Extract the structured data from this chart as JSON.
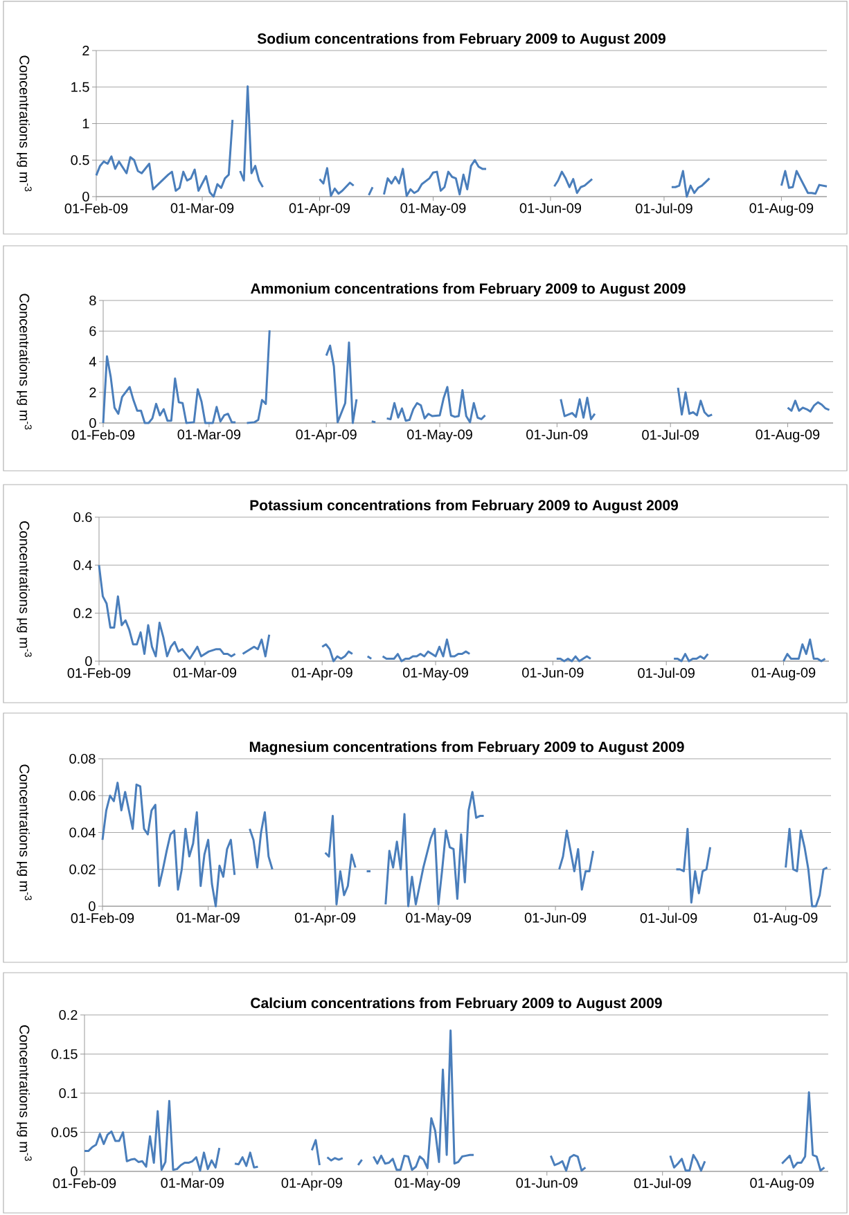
{
  "chart_data": [
    {
      "type": "line",
      "title": "Sodium concentrations from February 2009 to August 2009",
      "ylabel": "Concentrations  µg m$^{-3}$",
      "color": "#4a7ebb",
      "grid": "y",
      "xlim": [
        "2009-02-01",
        "2009-08-13"
      ],
      "ylim": [
        0,
        2
      ],
      "yticks": [
        0,
        0.5,
        1,
        1.5,
        2
      ],
      "xticks": [
        {
          "value": "2009-02-01",
          "label": "01-Feb-09"
        },
        {
          "value": "2009-03-01",
          "label": "01-Mar-09"
        },
        {
          "value": "2009-04-01",
          "label": "01-Apr-09"
        },
        {
          "value": "2009-05-01",
          "label": "01-May-09"
        },
        {
          "value": "2009-06-01",
          "label": "01-Jun-09"
        },
        {
          "value": "2009-07-01",
          "label": "01-Jul-09"
        },
        {
          "value": "2009-08-01",
          "label": "01-Aug-09"
        }
      ],
      "x": [
        "2009-02-01",
        "2009-02-02",
        "2009-02-03",
        "2009-02-04",
        "2009-02-05",
        "2009-02-06",
        "2009-02-07",
        "2009-02-09",
        "2009-02-10",
        "2009-02-11",
        "2009-02-12",
        "2009-02-13",
        "2009-02-15",
        "2009-02-16",
        "2009-02-18",
        "2009-02-20",
        "2009-02-21",
        "2009-02-22",
        "2009-02-23",
        "2009-02-24",
        "2009-02-25",
        "2009-02-26",
        "2009-02-27",
        "2009-02-28",
        "2009-03-02",
        "2009-03-03",
        "2009-03-04",
        "2009-03-05",
        "2009-03-06",
        "2009-03-07",
        "2009-03-08",
        "2009-03-09",
        "2009-03-10",
        "2009-03-11",
        "2009-03-12",
        "2009-03-13",
        "2009-03-14",
        "2009-03-15",
        "2009-03-16",
        "2009-03-17",
        "2009-03-23",
        "2009-04-01",
        "2009-04-02",
        "2009-04-03",
        "2009-04-04",
        "2009-04-05",
        "2009-04-06",
        "2009-04-07",
        "2009-04-09",
        "2009-04-10",
        "2009-04-12",
        "2009-04-14",
        "2009-04-15",
        "2009-04-16",
        "2009-04-18",
        "2009-04-19",
        "2009-04-20",
        "2009-04-21",
        "2009-04-22",
        "2009-04-23",
        "2009-04-24",
        "2009-04-25",
        "2009-04-26",
        "2009-04-27",
        "2009-04-28",
        "2009-04-30",
        "2009-05-01",
        "2009-05-02",
        "2009-05-03",
        "2009-05-04",
        "2009-05-05",
        "2009-05-06",
        "2009-05-07",
        "2009-05-08",
        "2009-05-09",
        "2009-05-10",
        "2009-05-11",
        "2009-05-12",
        "2009-05-13",
        "2009-05-14",
        "2009-05-15",
        "2009-05-22",
        "2009-06-02",
        "2009-06-03",
        "2009-06-04",
        "2009-06-05",
        "2009-06-06",
        "2009-06-07",
        "2009-06-08",
        "2009-06-09",
        "2009-06-10",
        "2009-06-12",
        "2009-06-21",
        "2009-07-03",
        "2009-07-04",
        "2009-07-05",
        "2009-07-06",
        "2009-07-07",
        "2009-07-08",
        "2009-07-09",
        "2009-07-10",
        "2009-07-11",
        "2009-07-13",
        "2009-07-21",
        "2009-08-01",
        "2009-08-02",
        "2009-08-03",
        "2009-08-04",
        "2009-08-05",
        "2009-08-06",
        "2009-08-07",
        "2009-08-08",
        "2009-08-09",
        "2009-08-10",
        "2009-08-11",
        "2009-08-13"
      ],
      "values": [
        0.29,
        0.42,
        0.48,
        0.45,
        0.55,
        0.38,
        0.48,
        0.32,
        0.54,
        0.5,
        0.35,
        0.32,
        0.45,
        0.1,
        0.2,
        0.3,
        0.34,
        0.08,
        0.12,
        0.34,
        0.22,
        0.25,
        0.37,
        0.08,
        0.28,
        0.06,
        0.0,
        0.17,
        0.12,
        0.25,
        0.3,
        1.05,
        null,
        0.35,
        0.22,
        1.51,
        0.32,
        0.42,
        0.22,
        0.13,
        null,
        0.24,
        0.18,
        0.39,
        0.01,
        0.11,
        0.04,
        0.08,
        0.19,
        0.15,
        null,
        0.02,
        0.13,
        null,
        0.03,
        0.25,
        0.18,
        0.27,
        0.18,
        0.38,
        0.01,
        0.1,
        0.05,
        0.08,
        0.17,
        0.25,
        0.33,
        0.34,
        0.08,
        0.13,
        0.34,
        0.27,
        0.25,
        0.03,
        0.3,
        0.1,
        0.42,
        0.5,
        0.41,
        0.38,
        0.38,
        null,
        0.14,
        0.22,
        0.34,
        0.25,
        0.13,
        0.24,
        0.05,
        0.13,
        0.15,
        0.24,
        null,
        0.13,
        0.13,
        0.15,
        0.35,
        0.0,
        0.15,
        0.05,
        0.12,
        0.15,
        0.25,
        null,
        0.15,
        0.35,
        0.12,
        0.13,
        0.35,
        0.25,
        0.15,
        0.05,
        0.05,
        0.04,
        0.16,
        0.14
      ]
    },
    {
      "type": "line",
      "title": "Ammonium concentrations from February 2009 to August 2009",
      "ylabel": "Concentrations  µg m$^{-3}$",
      "color": "#4a7ebb",
      "grid": "y",
      "xlim": [
        "2009-02-01",
        "2009-08-13"
      ],
      "ylim": [
        0,
        8
      ],
      "yticks": [
        0,
        2,
        4,
        6,
        8
      ],
      "xticks": [
        {
          "value": "2009-02-01",
          "label": "01-Feb-09"
        },
        {
          "value": "2009-03-01",
          "label": "01-Mar-09"
        },
        {
          "value": "2009-04-01",
          "label": "01-Apr-09"
        },
        {
          "value": "2009-05-01",
          "label": "01-May-09"
        },
        {
          "value": "2009-06-01",
          "label": "01-Jun-09"
        },
        {
          "value": "2009-07-01",
          "label": "01-Jul-09"
        },
        {
          "value": "2009-08-01",
          "label": "01-Aug-09"
        }
      ],
      "x": [
        "2009-02-01",
        "2009-02-02",
        "2009-02-03",
        "2009-02-04",
        "2009-02-05",
        "2009-02-06",
        "2009-02-08",
        "2009-02-09",
        "2009-02-10",
        "2009-02-11",
        "2009-02-12",
        "2009-02-13",
        "2009-02-14",
        "2009-02-15",
        "2009-02-16",
        "2009-02-17",
        "2009-02-18",
        "2009-02-19",
        "2009-02-20",
        "2009-02-21",
        "2009-02-22",
        "2009-02-23",
        "2009-02-25",
        "2009-02-26",
        "2009-02-27",
        "2009-02-28",
        "2009-03-02",
        "2009-03-03",
        "2009-03-04",
        "2009-03-05",
        "2009-03-06",
        "2009-03-07",
        "2009-03-08",
        "2009-03-09",
        "2009-03-11",
        "2009-03-13",
        "2009-03-14",
        "2009-03-15",
        "2009-03-16",
        "2009-03-17",
        "2009-03-25",
        "2009-04-01",
        "2009-04-02",
        "2009-04-03",
        "2009-04-04",
        "2009-04-06",
        "2009-04-07",
        "2009-04-08",
        "2009-04-09",
        "2009-04-11",
        "2009-04-13",
        "2009-04-14",
        "2009-04-15",
        "2009-04-17",
        "2009-04-18",
        "2009-04-19",
        "2009-04-20",
        "2009-04-21",
        "2009-04-22",
        "2009-04-23",
        "2009-04-24",
        "2009-04-25",
        "2009-04-26",
        "2009-04-27",
        "2009-04-28",
        "2009-04-29",
        "2009-05-01",
        "2009-05-02",
        "2009-05-03",
        "2009-05-04",
        "2009-05-05",
        "2009-05-06",
        "2009-05-07",
        "2009-05-08",
        "2009-05-09",
        "2009-05-10",
        "2009-05-11",
        "2009-05-12",
        "2009-05-13",
        "2009-05-20",
        "2009-06-02",
        "2009-06-03",
        "2009-06-04",
        "2009-06-05",
        "2009-06-06",
        "2009-06-07",
        "2009-06-08",
        "2009-06-09",
        "2009-06-10",
        "2009-06-11",
        "2009-06-20",
        "2009-07-03",
        "2009-07-04",
        "2009-07-05",
        "2009-07-06",
        "2009-07-07",
        "2009-07-08",
        "2009-07-09",
        "2009-07-10",
        "2009-07-11",
        "2009-07-12",
        "2009-07-20",
        "2009-08-01",
        "2009-08-02",
        "2009-08-03",
        "2009-08-04",
        "2009-08-05",
        "2009-08-06",
        "2009-08-07",
        "2009-08-08",
        "2009-08-09",
        "2009-08-10",
        "2009-08-11",
        "2009-08-12"
      ],
      "values": [
        0.0,
        4.35,
        3.0,
        1.0,
        0.6,
        1.7,
        2.35,
        1.5,
        0.8,
        0.8,
        0.0,
        0.0,
        0.3,
        1.25,
        0.5,
        0.9,
        0.15,
        0.15,
        2.9,
        1.35,
        1.3,
        0.0,
        0.05,
        2.2,
        1.4,
        0.0,
        0.0,
        1.05,
        0.1,
        0.5,
        0.6,
        0.05,
        0.05,
        null,
        0.0,
        0.05,
        0.2,
        1.5,
        1.25,
        6.05,
        null,
        4.4,
        5.05,
        3.7,
        0.05,
        1.3,
        5.25,
        0.0,
        1.55,
        null,
        0.1,
        0.05,
        null,
        0.3,
        0.25,
        1.3,
        0.35,
        0.95,
        0.15,
        0.2,
        0.9,
        1.3,
        1.15,
        0.3,
        0.6,
        0.45,
        0.5,
        1.6,
        2.35,
        0.5,
        0.4,
        0.45,
        2.15,
        0.45,
        0.05,
        1.3,
        0.35,
        0.25,
        0.5,
        null,
        1.55,
        0.45,
        0.55,
        0.65,
        0.4,
        1.55,
        0.35,
        1.65,
        0.25,
        0.6,
        null,
        2.3,
        0.55,
        2.0,
        0.6,
        0.7,
        0.5,
        1.45,
        0.7,
        0.45,
        0.55,
        null,
        1.0,
        0.8,
        1.45,
        0.8,
        1.0,
        0.9,
        0.75,
        1.15,
        1.35,
        1.2,
        0.95,
        0.85
      ]
    },
    {
      "type": "line",
      "title": "Potassium concentrations from February 2009 to August 2009",
      "ylabel": "Concentrations  µg m$^{-3}$",
      "color": "#4a7ebb",
      "grid": "y",
      "xlim": [
        "2009-02-01",
        "2009-08-13"
      ],
      "ylim": [
        0,
        0.6
      ],
      "yticks": [
        0,
        0.2,
        0.4,
        0.6
      ],
      "xticks": [
        {
          "value": "2009-02-01",
          "label": "01-Feb-09"
        },
        {
          "value": "2009-03-01",
          "label": "01-Mar-09"
        },
        {
          "value": "2009-04-01",
          "label": "01-Apr-09"
        },
        {
          "value": "2009-05-01",
          "label": "01-May-09"
        },
        {
          "value": "2009-06-01",
          "label": "01-Jun-09"
        },
        {
          "value": "2009-07-01",
          "label": "01-Jul-09"
        },
        {
          "value": "2009-08-01",
          "label": "01-Aug-09"
        }
      ],
      "x": [
        "2009-02-01",
        "2009-02-02",
        "2009-02-03",
        "2009-02-04",
        "2009-02-05",
        "2009-02-06",
        "2009-02-07",
        "2009-02-08",
        "2009-02-09",
        "2009-02-10",
        "2009-02-11",
        "2009-02-12",
        "2009-02-13",
        "2009-02-14",
        "2009-02-15",
        "2009-02-16",
        "2009-02-17",
        "2009-02-18",
        "2009-02-19",
        "2009-02-20",
        "2009-02-21",
        "2009-02-22",
        "2009-02-23",
        "2009-02-24",
        "2009-02-25",
        "2009-02-27",
        "2009-02-28",
        "2009-03-02",
        "2009-03-04",
        "2009-03-05",
        "2009-03-06",
        "2009-03-07",
        "2009-03-08",
        "2009-03-09",
        "2009-03-10",
        "2009-03-11",
        "2009-03-14",
        "2009-03-15",
        "2009-03-16",
        "2009-03-17",
        "2009-03-18",
        "2009-03-25",
        "2009-04-01",
        "2009-04-02",
        "2009-04-03",
        "2009-04-04",
        "2009-04-05",
        "2009-04-06",
        "2009-04-07",
        "2009-04-08",
        "2009-04-09",
        "2009-04-11",
        "2009-04-13",
        "2009-04-14",
        "2009-04-15",
        "2009-04-17",
        "2009-04-18",
        "2009-04-19",
        "2009-04-20",
        "2009-04-21",
        "2009-04-22",
        "2009-04-23",
        "2009-04-24",
        "2009-04-25",
        "2009-04-26",
        "2009-04-27",
        "2009-04-28",
        "2009-04-29",
        "2009-04-30",
        "2009-05-01",
        "2009-05-02",
        "2009-05-03",
        "2009-05-04",
        "2009-05-05",
        "2009-05-06",
        "2009-05-07",
        "2009-05-08",
        "2009-05-09",
        "2009-05-10",
        "2009-05-20",
        "2009-06-02",
        "2009-06-03",
        "2009-06-04",
        "2009-06-05",
        "2009-06-06",
        "2009-06-07",
        "2009-06-08",
        "2009-06-09",
        "2009-06-10",
        "2009-06-11",
        "2009-06-20",
        "2009-07-03",
        "2009-07-04",
        "2009-07-05",
        "2009-07-06",
        "2009-07-07",
        "2009-07-08",
        "2009-07-09",
        "2009-07-10",
        "2009-07-11",
        "2009-07-12",
        "2009-07-20",
        "2009-08-01",
        "2009-08-02",
        "2009-08-03",
        "2009-08-04",
        "2009-08-05",
        "2009-08-06",
        "2009-08-07",
        "2009-08-08",
        "2009-08-09",
        "2009-08-10",
        "2009-08-11",
        "2009-08-12"
      ],
      "values": [
        0.4,
        0.27,
        0.24,
        0.14,
        0.14,
        0.27,
        0.15,
        0.17,
        0.13,
        0.07,
        0.07,
        0.12,
        0.03,
        0.15,
        0.06,
        0.02,
        0.16,
        0.1,
        0.02,
        0.06,
        0.08,
        0.04,
        0.05,
        0.03,
        0.01,
        0.06,
        0.02,
        0.04,
        0.05,
        0.05,
        0.03,
        0.03,
        0.02,
        0.03,
        null,
        0.03,
        0.06,
        0.05,
        0.09,
        0.02,
        0.11,
        null,
        0.06,
        0.07,
        0.05,
        0.0,
        0.02,
        0.01,
        0.02,
        0.04,
        0.03,
        null,
        0.02,
        0.01,
        null,
        0.02,
        0.01,
        0.01,
        0.01,
        0.03,
        0.0,
        0.01,
        0.01,
        0.02,
        0.02,
        0.03,
        0.02,
        0.04,
        0.03,
        0.02,
        0.06,
        0.02,
        0.09,
        0.02,
        0.02,
        0.03,
        0.03,
        0.04,
        0.03,
        null,
        0.01,
        0.01,
        0.0,
        0.01,
        0.0,
        0.02,
        0.0,
        0.01,
        0.02,
        0.01,
        null,
        0.01,
        0.01,
        0.0,
        0.03,
        0.0,
        0.01,
        0.01,
        0.02,
        0.01,
        0.03,
        null,
        0.0,
        0.03,
        0.01,
        0.01,
        0.01,
        0.07,
        0.03,
        0.09,
        0.01,
        0.01,
        0.0,
        0.01
      ]
    },
    {
      "type": "line",
      "title": "Magnesium concentrations from February 2009 to August 2009",
      "ylabel": "Concentrations  µg m$^{-3}$",
      "color": "#4a7ebb",
      "grid": "y",
      "xlim": [
        "2009-02-01",
        "2009-08-13"
      ],
      "ylim": [
        0,
        0.08
      ],
      "yticks": [
        0,
        0.02,
        0.04,
        0.06,
        0.08
      ],
      "xticks": [
        {
          "value": "2009-02-01",
          "label": "01-Feb-09"
        },
        {
          "value": "2009-03-01",
          "label": "01-Mar-09"
        },
        {
          "value": "2009-04-01",
          "label": "01-Apr-09"
        },
        {
          "value": "2009-05-01",
          "label": "01-May-09"
        },
        {
          "value": "2009-06-01",
          "label": "01-Jun-09"
        },
        {
          "value": "2009-07-01",
          "label": "01-Jul-09"
        },
        {
          "value": "2009-08-01",
          "label": "01-Aug-09"
        }
      ],
      "x": [
        "2009-02-01",
        "2009-02-02",
        "2009-02-03",
        "2009-02-04",
        "2009-02-05",
        "2009-02-06",
        "2009-02-07",
        "2009-02-08",
        "2009-02-09",
        "2009-02-10",
        "2009-02-11",
        "2009-02-12",
        "2009-02-13",
        "2009-02-14",
        "2009-02-15",
        "2009-02-16",
        "2009-02-17",
        "2009-02-18",
        "2009-02-19",
        "2009-02-20",
        "2009-02-21",
        "2009-02-22",
        "2009-02-23",
        "2009-02-24",
        "2009-02-25",
        "2009-02-26",
        "2009-02-27",
        "2009-02-28",
        "2009-03-01",
        "2009-03-02",
        "2009-03-03",
        "2009-03-04",
        "2009-03-05",
        "2009-03-06",
        "2009-03-07",
        "2009-03-08",
        "2009-03-10",
        "2009-03-12",
        "2009-03-13",
        "2009-03-14",
        "2009-03-15",
        "2009-03-16",
        "2009-03-17",
        "2009-03-18",
        "2009-03-25",
        "2009-04-01",
        "2009-04-02",
        "2009-04-03",
        "2009-04-04",
        "2009-04-05",
        "2009-04-06",
        "2009-04-07",
        "2009-04-08",
        "2009-04-09",
        "2009-04-10",
        "2009-04-12",
        "2009-04-13",
        "2009-04-14",
        "2009-04-17",
        "2009-04-18",
        "2009-04-19",
        "2009-04-20",
        "2009-04-21",
        "2009-04-22",
        "2009-04-23",
        "2009-04-24",
        "2009-04-25",
        "2009-04-26",
        "2009-04-27",
        "2009-04-28",
        "2009-04-29",
        "2009-04-30",
        "2009-05-01",
        "2009-05-02",
        "2009-05-03",
        "2009-05-04",
        "2009-05-05",
        "2009-05-06",
        "2009-05-07",
        "2009-05-08",
        "2009-05-09",
        "2009-05-10",
        "2009-05-11",
        "2009-05-12",
        "2009-05-13",
        "2009-05-20",
        "2009-06-02",
        "2009-06-03",
        "2009-06-04",
        "2009-06-05",
        "2009-06-06",
        "2009-06-07",
        "2009-06-08",
        "2009-06-09",
        "2009-06-10",
        "2009-06-11",
        "2009-06-20",
        "2009-07-03",
        "2009-07-04",
        "2009-07-05",
        "2009-07-06",
        "2009-07-07",
        "2009-07-08",
        "2009-07-09",
        "2009-07-10",
        "2009-07-11",
        "2009-07-12",
        "2009-07-20",
        "2009-08-01",
        "2009-08-02",
        "2009-08-03",
        "2009-08-04",
        "2009-08-05",
        "2009-08-06",
        "2009-08-07",
        "2009-08-08",
        "2009-08-09",
        "2009-08-10",
        "2009-08-11",
        "2009-08-12"
      ],
      "values": [
        0.036,
        0.052,
        0.06,
        0.057,
        0.067,
        0.052,
        0.062,
        0.052,
        0.042,
        0.066,
        0.065,
        0.042,
        0.039,
        0.052,
        0.055,
        0.011,
        0.02,
        0.03,
        0.039,
        0.041,
        0.009,
        0.02,
        0.042,
        0.027,
        0.034,
        0.051,
        0.011,
        0.028,
        0.036,
        0.012,
        0.0,
        0.022,
        0.016,
        0.031,
        0.036,
        0.017,
        null,
        0.042,
        0.036,
        0.021,
        0.04,
        0.051,
        0.027,
        0.02,
        null,
        0.029,
        0.027,
        0.049,
        0.001,
        0.019,
        0.006,
        0.011,
        0.028,
        0.021,
        null,
        0.019,
        0.019,
        null,
        0.001,
        0.03,
        0.021,
        0.035,
        0.02,
        0.05,
        0.0,
        0.016,
        0.001,
        0.011,
        0.021,
        0.029,
        0.037,
        0.042,
        0.001,
        0.02,
        0.041,
        0.032,
        0.031,
        0.004,
        0.039,
        0.013,
        0.052,
        0.062,
        0.048,
        0.049,
        0.049,
        null,
        0.02,
        0.027,
        0.041,
        0.03,
        0.019,
        0.031,
        0.009,
        0.019,
        0.019,
        0.03,
        null,
        0.02,
        0.02,
        0.019,
        0.042,
        0.002,
        0.019,
        0.007,
        0.019,
        0.02,
        0.032,
        null,
        0.021,
        0.042,
        0.02,
        0.019,
        0.041,
        0.032,
        0.02,
        0.0,
        0.0,
        0.006,
        0.02,
        0.021
      ]
    },
    {
      "type": "line",
      "title": "Calcium concentrations from February 2009 to August 2009",
      "ylabel": "Concentrations  µg m$^{-3}$",
      "color": "#4a7ebb",
      "grid": "y",
      "xlim": [
        "2009-02-01",
        "2009-08-13"
      ],
      "ylim": [
        0,
        0.2
      ],
      "yticks": [
        0,
        0.05,
        0.1,
        0.15,
        0.2
      ],
      "xticks": [
        {
          "value": "2009-02-01",
          "label": "01-Feb-09"
        },
        {
          "value": "2009-03-01",
          "label": "01-Mar-09"
        },
        {
          "value": "2009-04-01",
          "label": "01-Apr-09"
        },
        {
          "value": "2009-05-01",
          "label": "01-May-09"
        },
        {
          "value": "2009-06-01",
          "label": "01-Jun-09"
        },
        {
          "value": "2009-07-01",
          "label": "01-Jul-09"
        },
        {
          "value": "2009-08-01",
          "label": "01-Aug-09"
        }
      ],
      "x": [
        "2009-02-01",
        "2009-02-02",
        "2009-02-03",
        "2009-02-04",
        "2009-02-05",
        "2009-02-06",
        "2009-02-07",
        "2009-02-08",
        "2009-02-09",
        "2009-02-10",
        "2009-02-11",
        "2009-02-12",
        "2009-02-13",
        "2009-02-14",
        "2009-02-15",
        "2009-02-16",
        "2009-02-17",
        "2009-02-18",
        "2009-02-19",
        "2009-02-20",
        "2009-02-21",
        "2009-02-22",
        "2009-02-23",
        "2009-02-24",
        "2009-02-25",
        "2009-02-26",
        "2009-02-27",
        "2009-02-28",
        "2009-03-01",
        "2009-03-02",
        "2009-03-03",
        "2009-03-04",
        "2009-03-05",
        "2009-03-06",
        "2009-03-07",
        "2009-03-08",
        "2009-03-10",
        "2009-03-12",
        "2009-03-13",
        "2009-03-14",
        "2009-03-15",
        "2009-03-16",
        "2009-03-17",
        "2009-03-18",
        "2009-03-25",
        "2009-04-01",
        "2009-04-02",
        "2009-04-03",
        "2009-04-04",
        "2009-04-05",
        "2009-04-06",
        "2009-04-07",
        "2009-04-08",
        "2009-04-09",
        "2009-04-11",
        "2009-04-13",
        "2009-04-14",
        "2009-04-15",
        "2009-04-17",
        "2009-04-18",
        "2009-04-19",
        "2009-04-20",
        "2009-04-21",
        "2009-04-22",
        "2009-04-23",
        "2009-04-24",
        "2009-04-25",
        "2009-04-26",
        "2009-04-27",
        "2009-04-28",
        "2009-04-29",
        "2009-04-30",
        "2009-05-01",
        "2009-05-02",
        "2009-05-03",
        "2009-05-04",
        "2009-05-05",
        "2009-05-06",
        "2009-05-07",
        "2009-05-08",
        "2009-05-09",
        "2009-05-10",
        "2009-05-11",
        "2009-05-12",
        "2009-05-13",
        "2009-05-20",
        "2009-06-02",
        "2009-06-03",
        "2009-06-04",
        "2009-06-05",
        "2009-06-06",
        "2009-06-07",
        "2009-06-08",
        "2009-06-09",
        "2009-06-10",
        "2009-06-11",
        "2009-06-20",
        "2009-07-03",
        "2009-07-04",
        "2009-07-05",
        "2009-07-06",
        "2009-07-07",
        "2009-07-08",
        "2009-07-09",
        "2009-07-10",
        "2009-07-11",
        "2009-07-12",
        "2009-07-20",
        "2009-08-01",
        "2009-08-02",
        "2009-08-03",
        "2009-08-04",
        "2009-08-05",
        "2009-08-06",
        "2009-08-07",
        "2009-08-08",
        "2009-08-09",
        "2009-08-10",
        "2009-08-11",
        "2009-08-12"
      ],
      "values": [
        0.026,
        0.026,
        0.031,
        0.034,
        0.048,
        0.035,
        0.047,
        0.051,
        0.039,
        0.039,
        0.05,
        0.013,
        0.015,
        0.016,
        0.012,
        0.013,
        0.006,
        0.045,
        0.011,
        0.077,
        0.002,
        0.012,
        0.09,
        0.002,
        0.003,
        0.008,
        0.011,
        0.011,
        0.013,
        0.018,
        0.001,
        0.024,
        0.003,
        0.014,
        0.005,
        0.03,
        null,
        0.01,
        0.009,
        0.018,
        0.007,
        0.024,
        0.005,
        0.006,
        null,
        0.027,
        0.04,
        0.008,
        null,
        0.018,
        0.014,
        0.017,
        0.015,
        0.017,
        null,
        0.008,
        0.015,
        null,
        0.019,
        0.01,
        0.02,
        0.01,
        0.011,
        0.016,
        0.002,
        0.002,
        0.02,
        0.019,
        0.002,
        0.006,
        0.019,
        0.015,
        0.004,
        0.068,
        0.052,
        0.012,
        0.13,
        0.021,
        0.18,
        0.01,
        0.012,
        0.019,
        0.02,
        0.021,
        0.021,
        null,
        0.02,
        0.008,
        0.01,
        0.013,
        0.001,
        0.018,
        0.021,
        0.019,
        0.001,
        0.005,
        null,
        0.02,
        0.005,
        0.01,
        0.016,
        0.001,
        0.001,
        0.021,
        0.013,
        0.001,
        0.013,
        null,
        0.01,
        0.015,
        0.02,
        0.005,
        0.011,
        0.011,
        0.019,
        0.101,
        0.021,
        0.019,
        0.001,
        0.005
      ]
    }
  ]
}
